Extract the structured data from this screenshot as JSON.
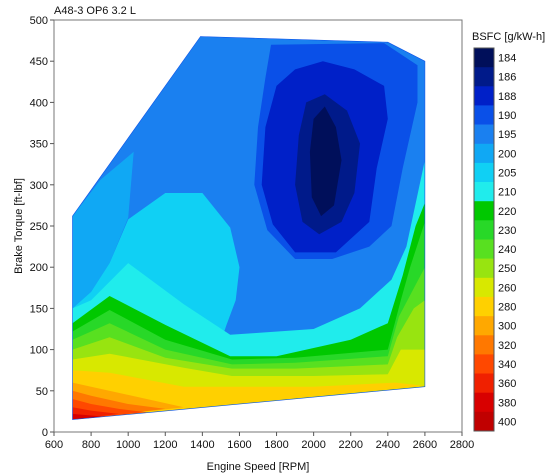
{
  "chart_data": {
    "type": "contour",
    "title": "A48-3 OP6 3.2 L",
    "xlabel": "Engine Speed [RPM]",
    "ylabel": "Brake Torque [ft-lbf]",
    "xlim": [
      600,
      2800
    ],
    "ylim": [
      0,
      500
    ],
    "xticks": [
      "600",
      "800",
      "1000",
      "1200",
      "1400",
      "1600",
      "1800",
      "2000",
      "2200",
      "2400",
      "2600",
      "2800"
    ],
    "yticks": [
      "0",
      "50",
      "100",
      "150",
      "200",
      "250",
      "300",
      "350",
      "400",
      "450",
      "500"
    ],
    "colorbar": {
      "title": "BSFC [g/kW-h]",
      "levels": [
        "184",
        "186",
        "188",
        "190",
        "195",
        "200",
        "205",
        "210",
        "220",
        "230",
        "240",
        "250",
        "260",
        "280",
        "300",
        "320",
        "340",
        "360",
        "380",
        "400"
      ],
      "colors": [
        "#000f5a",
        "#001a8a",
        "#0020c8",
        "#0a50e8",
        "#1a80f0",
        "#10a8f4",
        "#10d0f4",
        "#20ecec",
        "#00c800",
        "#28d828",
        "#58e020",
        "#98e410",
        "#d8e800",
        "#ffd000",
        "#ffa800",
        "#ff7800",
        "#ff4800",
        "#f02000",
        "#d80000",
        "#c00000"
      ]
    },
    "boundary": [
      [
        700,
        15
      ],
      [
        700,
        262
      ],
      [
        1390,
        480
      ],
      [
        2400,
        473
      ],
      [
        2600,
        450
      ],
      [
        2600,
        55
      ]
    ],
    "regions": [
      {
        "level": "195",
        "points": [
          [
            700,
            262
          ],
          [
            1390,
            480
          ],
          [
            2400,
            473
          ],
          [
            2600,
            450
          ],
          [
            2600,
            55
          ],
          [
            700,
            15
          ]
        ]
      },
      {
        "level": "200",
        "points": [
          [
            700,
            15
          ],
          [
            700,
            262
          ],
          [
            850,
            306
          ],
          [
            1030,
            340
          ],
          [
            1000,
            260
          ],
          [
            900,
            205
          ],
          [
            800,
            170
          ],
          [
            700,
            150
          ]
        ]
      },
      {
        "level": "205",
        "points": [
          [
            700,
            150
          ],
          [
            800,
            170
          ],
          [
            900,
            205
          ],
          [
            1000,
            258
          ],
          [
            1200,
            290
          ],
          [
            1400,
            290
          ],
          [
            1550,
            248
          ],
          [
            1600,
            200
          ],
          [
            1580,
            160
          ],
          [
            1530,
            130
          ],
          [
            1500,
            110
          ],
          [
            1450,
            90
          ],
          [
            1300,
            60
          ],
          [
            700,
            15
          ]
        ]
      },
      {
        "level": "210",
        "points": [
          [
            700,
            150
          ],
          [
            800,
            160
          ],
          [
            1000,
            205
          ],
          [
            1300,
            155
          ],
          [
            1550,
            118
          ],
          [
            1680,
            120
          ],
          [
            2000,
            125
          ],
          [
            2250,
            150
          ],
          [
            2420,
            185
          ],
          [
            2500,
            225
          ],
          [
            2600,
            330
          ],
          [
            2600,
            55
          ],
          [
            700,
            15
          ]
        ]
      },
      {
        "level": "220",
        "points": [
          [
            700,
            132
          ],
          [
            900,
            165
          ],
          [
            1200,
            130
          ],
          [
            1550,
            92
          ],
          [
            1800,
            92
          ],
          [
            2200,
            112
          ],
          [
            2400,
            132
          ],
          [
            2480,
            190
          ],
          [
            2550,
            250
          ],
          [
            2600,
            278
          ],
          [
            2600,
            55
          ],
          [
            700,
            15
          ]
        ]
      },
      {
        "level": "230",
        "points": [
          [
            700,
            122
          ],
          [
            900,
            148
          ],
          [
            1200,
            112
          ],
          [
            1560,
            88
          ],
          [
            1900,
            90
          ],
          [
            2400,
            100
          ],
          [
            2470,
            160
          ],
          [
            2520,
            200
          ],
          [
            2600,
            255
          ],
          [
            2600,
            55
          ],
          [
            700,
            15
          ]
        ]
      },
      {
        "level": "240",
        "points": [
          [
            700,
            112
          ],
          [
            900,
            132
          ],
          [
            1200,
            100
          ],
          [
            1560,
            82
          ],
          [
            1900,
            84
          ],
          [
            2400,
            92
          ],
          [
            2460,
            140
          ],
          [
            2530,
            170
          ],
          [
            2600,
            200
          ],
          [
            2600,
            55
          ],
          [
            700,
            15
          ]
        ]
      },
      {
        "level": "250",
        "points": [
          [
            700,
            100
          ],
          [
            900,
            115
          ],
          [
            1200,
            90
          ],
          [
            1560,
            77
          ],
          [
            1900,
            77
          ],
          [
            2400,
            82
          ],
          [
            2450,
            115
          ],
          [
            2540,
            150
          ],
          [
            2600,
            160
          ],
          [
            2600,
            55
          ],
          [
            700,
            15
          ]
        ]
      },
      {
        "level": "260",
        "points": [
          [
            700,
            88
          ],
          [
            900,
            95
          ],
          [
            1300,
            78
          ],
          [
            1560,
            68
          ],
          [
            2000,
            68
          ],
          [
            2400,
            70
          ],
          [
            2470,
            100
          ],
          [
            2600,
            100
          ],
          [
            2600,
            55
          ],
          [
            700,
            15
          ]
        ]
      },
      {
        "level": "280",
        "points": [
          [
            700,
            75
          ],
          [
            900,
            72
          ],
          [
            1300,
            55
          ],
          [
            2000,
            55
          ],
          [
            2440,
            60
          ],
          [
            2600,
            56
          ],
          [
            700,
            15
          ]
        ]
      },
      {
        "level": "300",
        "points": [
          [
            700,
            60
          ],
          [
            800,
            55
          ],
          [
            1100,
            40
          ],
          [
            1300,
            30
          ],
          [
            700,
            15
          ]
        ]
      },
      {
        "level": "320",
        "points": [
          [
            700,
            50
          ],
          [
            800,
            44
          ],
          [
            1000,
            34
          ],
          [
            1200,
            28
          ],
          [
            700,
            15
          ]
        ]
      },
      {
        "level": "340",
        "points": [
          [
            700,
            40
          ],
          [
            800,
            34
          ],
          [
            950,
            28
          ],
          [
            1100,
            24
          ],
          [
            700,
            15
          ]
        ]
      },
      {
        "level": "360",
        "points": [
          [
            700,
            30
          ],
          [
            800,
            26
          ],
          [
            950,
            22
          ],
          [
            700,
            15
          ]
        ]
      },
      {
        "level": "380",
        "points": [
          [
            700,
            22
          ],
          [
            800,
            20
          ],
          [
            900,
            18
          ],
          [
            700,
            15
          ]
        ]
      },
      {
        "level": "190",
        "points": [
          [
            1770,
            470
          ],
          [
            2380,
            472
          ],
          [
            2560,
            445
          ],
          [
            2560,
            400
          ],
          [
            2480,
            320
          ],
          [
            2420,
            250
          ],
          [
            2300,
            225
          ],
          [
            2100,
            210
          ],
          [
            1900,
            210
          ],
          [
            1750,
            245
          ],
          [
            1680,
            300
          ],
          [
            1700,
            370
          ],
          [
            1740,
            430
          ]
        ]
      },
      {
        "level": "188",
        "points": [
          [
            1800,
            420
          ],
          [
            1900,
            440
          ],
          [
            2050,
            450
          ],
          [
            2220,
            440
          ],
          [
            2380,
            420
          ],
          [
            2400,
            380
          ],
          [
            2340,
            320
          ],
          [
            2300,
            255
          ],
          [
            2120,
            218
          ],
          [
            1900,
            218
          ],
          [
            1780,
            252
          ],
          [
            1720,
            300
          ],
          [
            1740,
            370
          ]
        ]
      },
      {
        "level": "186",
        "points": [
          [
            1960,
            400
          ],
          [
            2060,
            410
          ],
          [
            2180,
            390
          ],
          [
            2250,
            350
          ],
          [
            2220,
            290
          ],
          [
            2150,
            255
          ],
          [
            2030,
            240
          ],
          [
            1940,
            255
          ],
          [
            1900,
            300
          ],
          [
            1920,
            360
          ]
        ]
      },
      {
        "level": "184",
        "points": [
          [
            2000,
            380
          ],
          [
            2060,
            395
          ],
          [
            2120,
            370
          ],
          [
            2150,
            330
          ],
          [
            2110,
            275
          ],
          [
            2040,
            262
          ],
          [
            1990,
            285
          ],
          [
            1980,
            340
          ]
        ]
      }
    ]
  }
}
